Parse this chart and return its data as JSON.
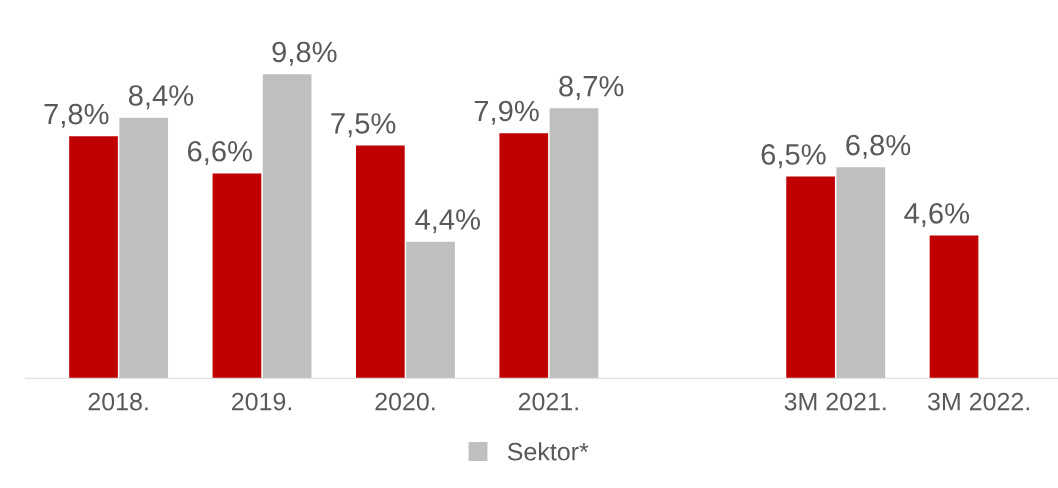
{
  "chart_data": {
    "type": "bar",
    "categories": [
      "2018.",
      "2019.",
      "2020.",
      "2021.",
      null,
      "3M 2021.",
      "3M 2022."
    ],
    "series": [
      {
        "color": "#c00000",
        "values": [
          7.8,
          6.6,
          7.5,
          7.9,
          null,
          6.5,
          4.6
        ],
        "value_labels": [
          "7,8%",
          "6,6%",
          "7,5%",
          "7,9%",
          null,
          "6,5%",
          "4,6%"
        ]
      },
      {
        "name": "Sektor*",
        "color": "#bfbfbf",
        "values": [
          8.4,
          9.8,
          4.4,
          8.7,
          null,
          6.8,
          null
        ],
        "value_labels": [
          "8,4%",
          "9,8%",
          "4,4%",
          "8,7%",
          null,
          "6,8%",
          null
        ]
      }
    ],
    "legend": "bottom",
    "grid": false
  }
}
